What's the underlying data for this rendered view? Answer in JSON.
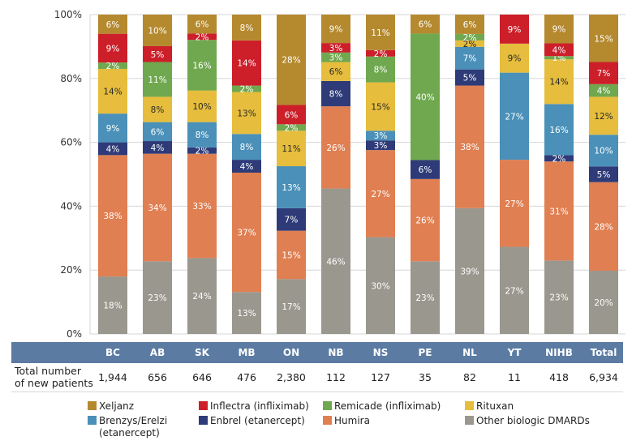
{
  "chart_data": {
    "type": "bar",
    "stacked": true,
    "title": "",
    "xlabel": "",
    "ylabel": "",
    "ylim": [
      0,
      100
    ],
    "yticks": [
      "0%",
      "20%",
      "40%",
      "60%",
      "80%",
      "100%"
    ],
    "ytick_values": [
      0,
      20,
      40,
      60,
      80,
      100
    ],
    "grid": true,
    "legend_position": "bottom",
    "categories": [
      "BC",
      "AB",
      "SK",
      "MB",
      "ON",
      "NB",
      "NS",
      "PE",
      "NL",
      "YT",
      "NIHB",
      "Total"
    ],
    "series": [
      {
        "name": "Other biologic DMARDs",
        "color": "#9a978e",
        "label_color": "#ffffff",
        "values": [
          18,
          23,
          24,
          13,
          17,
          46,
          30,
          23,
          39,
          27,
          23,
          20
        ]
      },
      {
        "name": "Humira",
        "color": "#e07f52",
        "label_color": "#ffffff",
        "values": [
          38,
          34,
          33,
          37,
          15,
          26,
          27,
          26,
          38,
          27,
          31,
          28
        ]
      },
      {
        "name": "Enbrel (etanercept)",
        "color": "#2e3b78",
        "label_color": "#ffffff",
        "values": [
          4,
          4,
          2,
          4,
          7,
          8,
          3,
          6,
          5,
          0,
          2,
          5
        ]
      },
      {
        "name": "Brenzys/Erelzi (etanercept)",
        "color": "#4a90b8",
        "label_color": "#ffffff",
        "values": [
          9,
          6,
          8,
          8,
          13,
          0,
          3,
          0,
          7,
          27,
          16,
          10
        ]
      },
      {
        "name": "Rituxan",
        "color": "#e6bd3c",
        "label_color": "#2a2a2a",
        "values": [
          14,
          8,
          10,
          13,
          11,
          6,
          15,
          0,
          2,
          9,
          14,
          12
        ]
      },
      {
        "name": "Remicade (infliximab)",
        "color": "#6fa84f",
        "label_color": "#ffffff",
        "values": [
          2,
          11,
          16,
          2,
          2,
          3,
          8,
          40,
          2,
          0,
          1,
          4
        ]
      },
      {
        "name": "Inflectra (infliximab)",
        "color": "#cc1f2a",
        "label_color": "#ffffff",
        "values": [
          9,
          5,
          2,
          14,
          6,
          3,
          2,
          0,
          0,
          9,
          4,
          7
        ]
      },
      {
        "name": "Xeljanz",
        "color": "#b5892e",
        "label_color": "#ffffff",
        "values": [
          6,
          10,
          6,
          8,
          28,
          9,
          11,
          6,
          6,
          0,
          9,
          15
        ]
      }
    ],
    "totals_row": {
      "label_line1": "Total number",
      "label_line2": "of new patients",
      "values": [
        "1,944",
        "656",
        "646",
        "476",
        "2,380",
        "112",
        "127",
        "35",
        "82",
        "11",
        "418",
        "6,934"
      ]
    }
  },
  "legend": [
    {
      "label": "Xeljanz",
      "color": "#b5892e"
    },
    {
      "label": "Inflectra (infliximab)",
      "color": "#cc1f2a"
    },
    {
      "label": "Remicade (infliximab)",
      "color": "#6fa84f"
    },
    {
      "label": "Rituxan",
      "color": "#e6bd3c"
    },
    {
      "label": "Brenzys/Erelzi",
      "label2": "(etanercept)",
      "color": "#4a90b8"
    },
    {
      "label": "Enbrel (etanercept)",
      "color": "#2e3b78"
    },
    {
      "label": "Humira",
      "color": "#e07f52"
    },
    {
      "label": "Other biologic DMARDs",
      "color": "#9a978e"
    }
  ]
}
